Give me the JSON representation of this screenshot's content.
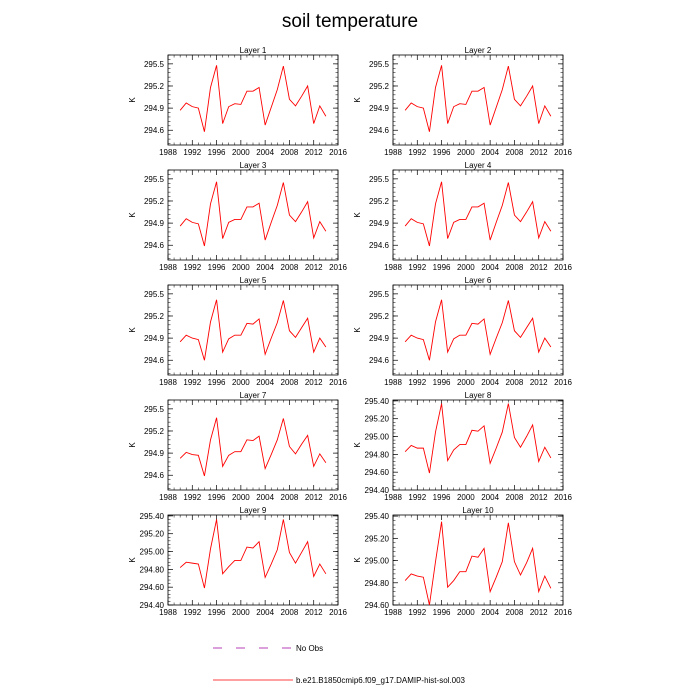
{
  "chart_data": {
    "type": "line",
    "title": "soil temperature",
    "x": [
      1990,
      1991,
      1992,
      1993,
      1994,
      1995,
      1996,
      1997,
      1998,
      1999,
      2000,
      2001,
      2002,
      2003,
      2004,
      2005,
      2006,
      2007,
      2008,
      2009,
      2010,
      2011,
      2012,
      2013,
      2014
    ],
    "xlim": [
      1988,
      2016
    ],
    "xticks": [
      "1988",
      "1992",
      "1996",
      "2000",
      "2004",
      "2008",
      "2012",
      "2016"
    ],
    "grid": false,
    "panels": [
      {
        "title": "Layer 1",
        "ylabel": "K",
        "ylim": [
          294.4,
          295.62
        ],
        "yticks": [
          "295.5",
          "295.2",
          "294.9",
          "294.6"
        ],
        "values": [
          294.87,
          294.97,
          294.92,
          294.9,
          294.58,
          295.18,
          295.48,
          294.69,
          294.92,
          294.96,
          294.95,
          295.13,
          295.13,
          295.18,
          294.67,
          294.91,
          295.15,
          295.47,
          295.02,
          294.93,
          295.06,
          295.2,
          294.69,
          294.93,
          294.79
        ]
      },
      {
        "title": "Layer 2",
        "ylabel": "K",
        "ylim": [
          294.4,
          295.62
        ],
        "yticks": [
          "295.5",
          "295.2",
          "294.9",
          "294.6"
        ],
        "values": [
          294.87,
          294.97,
          294.92,
          294.9,
          294.58,
          295.18,
          295.48,
          294.69,
          294.92,
          294.96,
          294.95,
          295.13,
          295.13,
          295.18,
          294.67,
          294.91,
          295.15,
          295.47,
          295.02,
          294.93,
          295.06,
          295.2,
          294.69,
          294.93,
          294.79
        ]
      },
      {
        "title": "Layer 3",
        "ylabel": "K",
        "ylim": [
          294.4,
          295.62
        ],
        "yticks": [
          "295.5",
          "295.2",
          "294.9",
          "294.6"
        ],
        "values": [
          294.86,
          294.96,
          294.91,
          294.89,
          294.59,
          295.16,
          295.46,
          294.69,
          294.91,
          294.95,
          294.95,
          295.12,
          295.12,
          295.17,
          294.67,
          294.91,
          295.14,
          295.45,
          295.01,
          294.92,
          295.05,
          295.19,
          294.7,
          294.92,
          294.79
        ]
      },
      {
        "title": "Layer 4",
        "ylabel": "K",
        "ylim": [
          294.4,
          295.62
        ],
        "yticks": [
          "295.5",
          "295.2",
          "294.9",
          "294.6"
        ],
        "values": [
          294.86,
          294.96,
          294.91,
          294.89,
          294.59,
          295.16,
          295.46,
          294.69,
          294.91,
          294.95,
          294.95,
          295.12,
          295.12,
          295.17,
          294.67,
          294.91,
          295.14,
          295.45,
          295.01,
          294.92,
          295.05,
          295.19,
          294.7,
          294.92,
          294.79
        ]
      },
      {
        "title": "Layer 5",
        "ylabel": "K",
        "ylim": [
          294.4,
          295.62
        ],
        "yticks": [
          "295.5",
          "295.2",
          "294.9",
          "294.6"
        ],
        "values": [
          294.85,
          294.94,
          294.9,
          294.88,
          294.6,
          295.12,
          295.42,
          294.71,
          294.89,
          294.94,
          294.94,
          295.1,
          295.09,
          295.16,
          294.68,
          294.9,
          295.11,
          295.41,
          295.0,
          294.91,
          295.04,
          295.17,
          294.71,
          294.9,
          294.78
        ]
      },
      {
        "title": "Layer 6",
        "ylabel": "K",
        "ylim": [
          294.4,
          295.62
        ],
        "yticks": [
          "295.5",
          "295.2",
          "294.9",
          "294.6"
        ],
        "values": [
          294.85,
          294.94,
          294.9,
          294.88,
          294.6,
          295.12,
          295.42,
          294.71,
          294.89,
          294.94,
          294.94,
          295.1,
          295.09,
          295.16,
          294.68,
          294.9,
          295.11,
          295.41,
          295.0,
          294.91,
          295.04,
          295.17,
          294.71,
          294.9,
          294.78
        ]
      },
      {
        "title": "Layer 7",
        "ylabel": "K",
        "ylim": [
          294.4,
          295.62
        ],
        "yticks": [
          "295.5",
          "295.2",
          "294.9",
          "294.6"
        ],
        "values": [
          294.83,
          294.91,
          294.88,
          294.87,
          294.59,
          295.08,
          295.38,
          294.72,
          294.87,
          294.92,
          294.92,
          295.08,
          295.07,
          295.13,
          294.69,
          294.88,
          295.08,
          295.37,
          294.99,
          294.89,
          295.02,
          295.14,
          294.72,
          294.89,
          294.77
        ]
      },
      {
        "title": "Layer 8",
        "ylabel": "K",
        "ylim": [
          294.4,
          295.41
        ],
        "yticks": [
          "295.40",
          "295.20",
          "295.00",
          "294.80",
          "294.60",
          "294.40"
        ],
        "values": [
          294.83,
          294.9,
          294.87,
          294.87,
          294.59,
          295.05,
          295.37,
          294.73,
          294.85,
          294.91,
          294.91,
          295.07,
          295.06,
          295.12,
          294.7,
          294.87,
          295.05,
          295.37,
          294.99,
          294.88,
          295.0,
          295.13,
          294.72,
          294.88,
          294.76
        ]
      },
      {
        "title": "Layer 9",
        "ylabel": "K",
        "ylim": [
          294.4,
          295.41
        ],
        "yticks": [
          "295.40",
          "295.20",
          "295.00",
          "294.80",
          "294.60",
          "294.40"
        ],
        "values": [
          294.82,
          294.88,
          294.87,
          294.86,
          294.59,
          295.03,
          295.36,
          294.75,
          294.83,
          294.9,
          294.9,
          295.05,
          295.04,
          295.11,
          294.71,
          294.86,
          295.02,
          295.36,
          294.99,
          294.87,
          294.99,
          295.11,
          294.72,
          294.86,
          294.75
        ]
      },
      {
        "title": "Layer 10",
        "ylabel": "K",
        "ylim": [
          294.6,
          295.41
        ],
        "yticks": [
          "295.40",
          "295.20",
          "295.00",
          "294.80",
          "294.60"
        ],
        "values": [
          294.82,
          294.88,
          294.86,
          294.85,
          294.6,
          294.99,
          295.35,
          294.76,
          294.82,
          294.9,
          294.9,
          295.04,
          295.03,
          295.11,
          294.72,
          294.85,
          294.99,
          295.34,
          294.99,
          294.87,
          294.98,
          295.11,
          294.72,
          294.86,
          294.75
        ]
      }
    ],
    "legend": {
      "placement": "bottom-center",
      "entries": [
        {
          "name": "No Obs",
          "style": "dashed",
          "color": "#a000a0"
        },
        {
          "name": "b.e21.B1850cmip6.f09_g17.DAMIP-hist-sol.003",
          "style": "solid",
          "color": "#ff0000"
        }
      ]
    },
    "series_color": "#ff0000"
  }
}
